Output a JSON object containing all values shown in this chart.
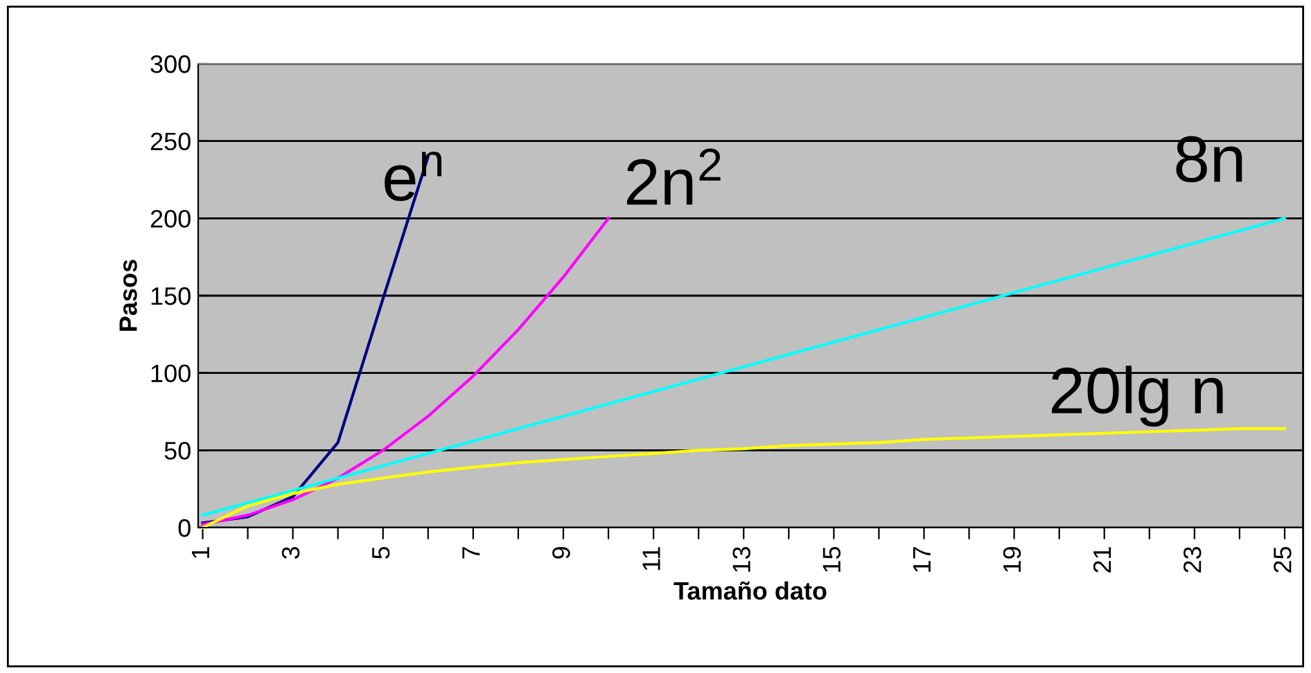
{
  "chart_data": {
    "type": "line",
    "xlabel": "Tamaño dato",
    "ylabel": "Pasos",
    "categories": [
      "1",
      null,
      "3",
      null,
      "5",
      null,
      "7",
      null,
      "9",
      null,
      "11",
      null,
      "13",
      null,
      "15",
      null,
      "17",
      null,
      "19",
      null,
      "21",
      null,
      "23",
      null,
      "25"
    ],
    "series": [
      {
        "name": "e$^{n}$",
        "color": "#000080",
        "values": [
          3,
          7,
          20,
          55,
          148,
          240,
          null,
          null,
          null,
          null,
          null,
          null,
          null,
          null,
          null,
          null,
          null,
          null,
          null,
          null,
          null,
          null,
          null,
          null,
          null
        ]
      },
      {
        "name": "2n$^{2}$",
        "color": "#ff00ff",
        "values": [
          2,
          8,
          18,
          32,
          50,
          72,
          98,
          128,
          162,
          200,
          null,
          null,
          null,
          null,
          null,
          null,
          null,
          null,
          null,
          null,
          null,
          null,
          null,
          null,
          null
        ]
      },
      {
        "name": "8n",
        "color": "#00ffff",
        "values": [
          8,
          16,
          24,
          32,
          40,
          48,
          56,
          64,
          72,
          80,
          88,
          96,
          104,
          112,
          120,
          128,
          136,
          144,
          152,
          160,
          168,
          176,
          184,
          192,
          200
        ]
      },
      {
        "name": "20lg n",
        "color": "#ffff00",
        "values": [
          0,
          14,
          22,
          28,
          32,
          36,
          39,
          42,
          44,
          46,
          48,
          50,
          51,
          53,
          54,
          55,
          57,
          58,
          59,
          60,
          61,
          62,
          63,
          64,
          64
        ]
      }
    ],
    "ylim": [
      0,
      300
    ],
    "yticks": [
      0,
      50,
      100,
      150,
      200,
      250,
      300
    ],
    "grid": "y",
    "marker": "none",
    "line_style": "solid"
  }
}
